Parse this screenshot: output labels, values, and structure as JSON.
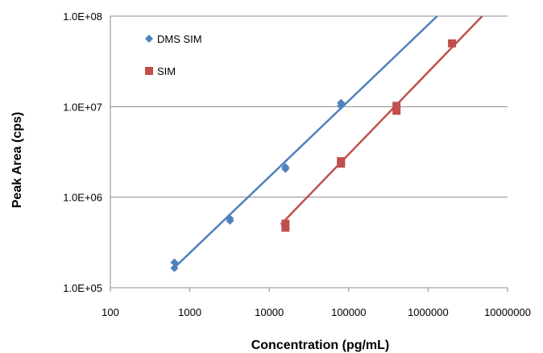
{
  "chart_data": {
    "type": "scatter",
    "xlabel": "Concentration (pg/mL)",
    "ylabel": "Peak Area (cps)",
    "x_scale": "log",
    "y_scale": "log",
    "xlim": [
      100,
      10000000
    ],
    "ylim": [
      100000,
      100000000
    ],
    "x_ticks": [
      "100",
      "1000",
      "10000",
      "100000",
      "1000000",
      "10000000"
    ],
    "y_ticks": [
      "1.0E+05",
      "1.0E+06",
      "1.0E+07",
      "1.0E+08"
    ],
    "grid": "horizontal",
    "legend_position": "top-left",
    "series": [
      {
        "name": "DMS SIM",
        "marker": "diamond",
        "color": "#4f81bd",
        "points": [
          [
            640,
            165000
          ],
          [
            640,
            190000
          ],
          [
            3200,
            550000
          ],
          [
            3200,
            580000
          ],
          [
            16000,
            2050000
          ],
          [
            16000,
            2150000
          ],
          [
            80000,
            10200000
          ],
          [
            80000,
            11000000
          ]
        ],
        "trendline": [
          [
            610,
            160000
          ],
          [
            1300000,
            100000000
          ]
        ]
      },
      {
        "name": "SIM",
        "marker": "square",
        "color": "#c0504d",
        "points": [
          [
            16000,
            460000
          ],
          [
            16000,
            510000
          ],
          [
            80000,
            2350000
          ],
          [
            80000,
            2500000
          ],
          [
            400000,
            9000000
          ],
          [
            400000,
            10200000
          ],
          [
            2000000,
            50000000
          ]
        ],
        "trendline": [
          [
            14000,
            500000
          ],
          [
            4800000,
            100000000
          ]
        ]
      }
    ]
  }
}
